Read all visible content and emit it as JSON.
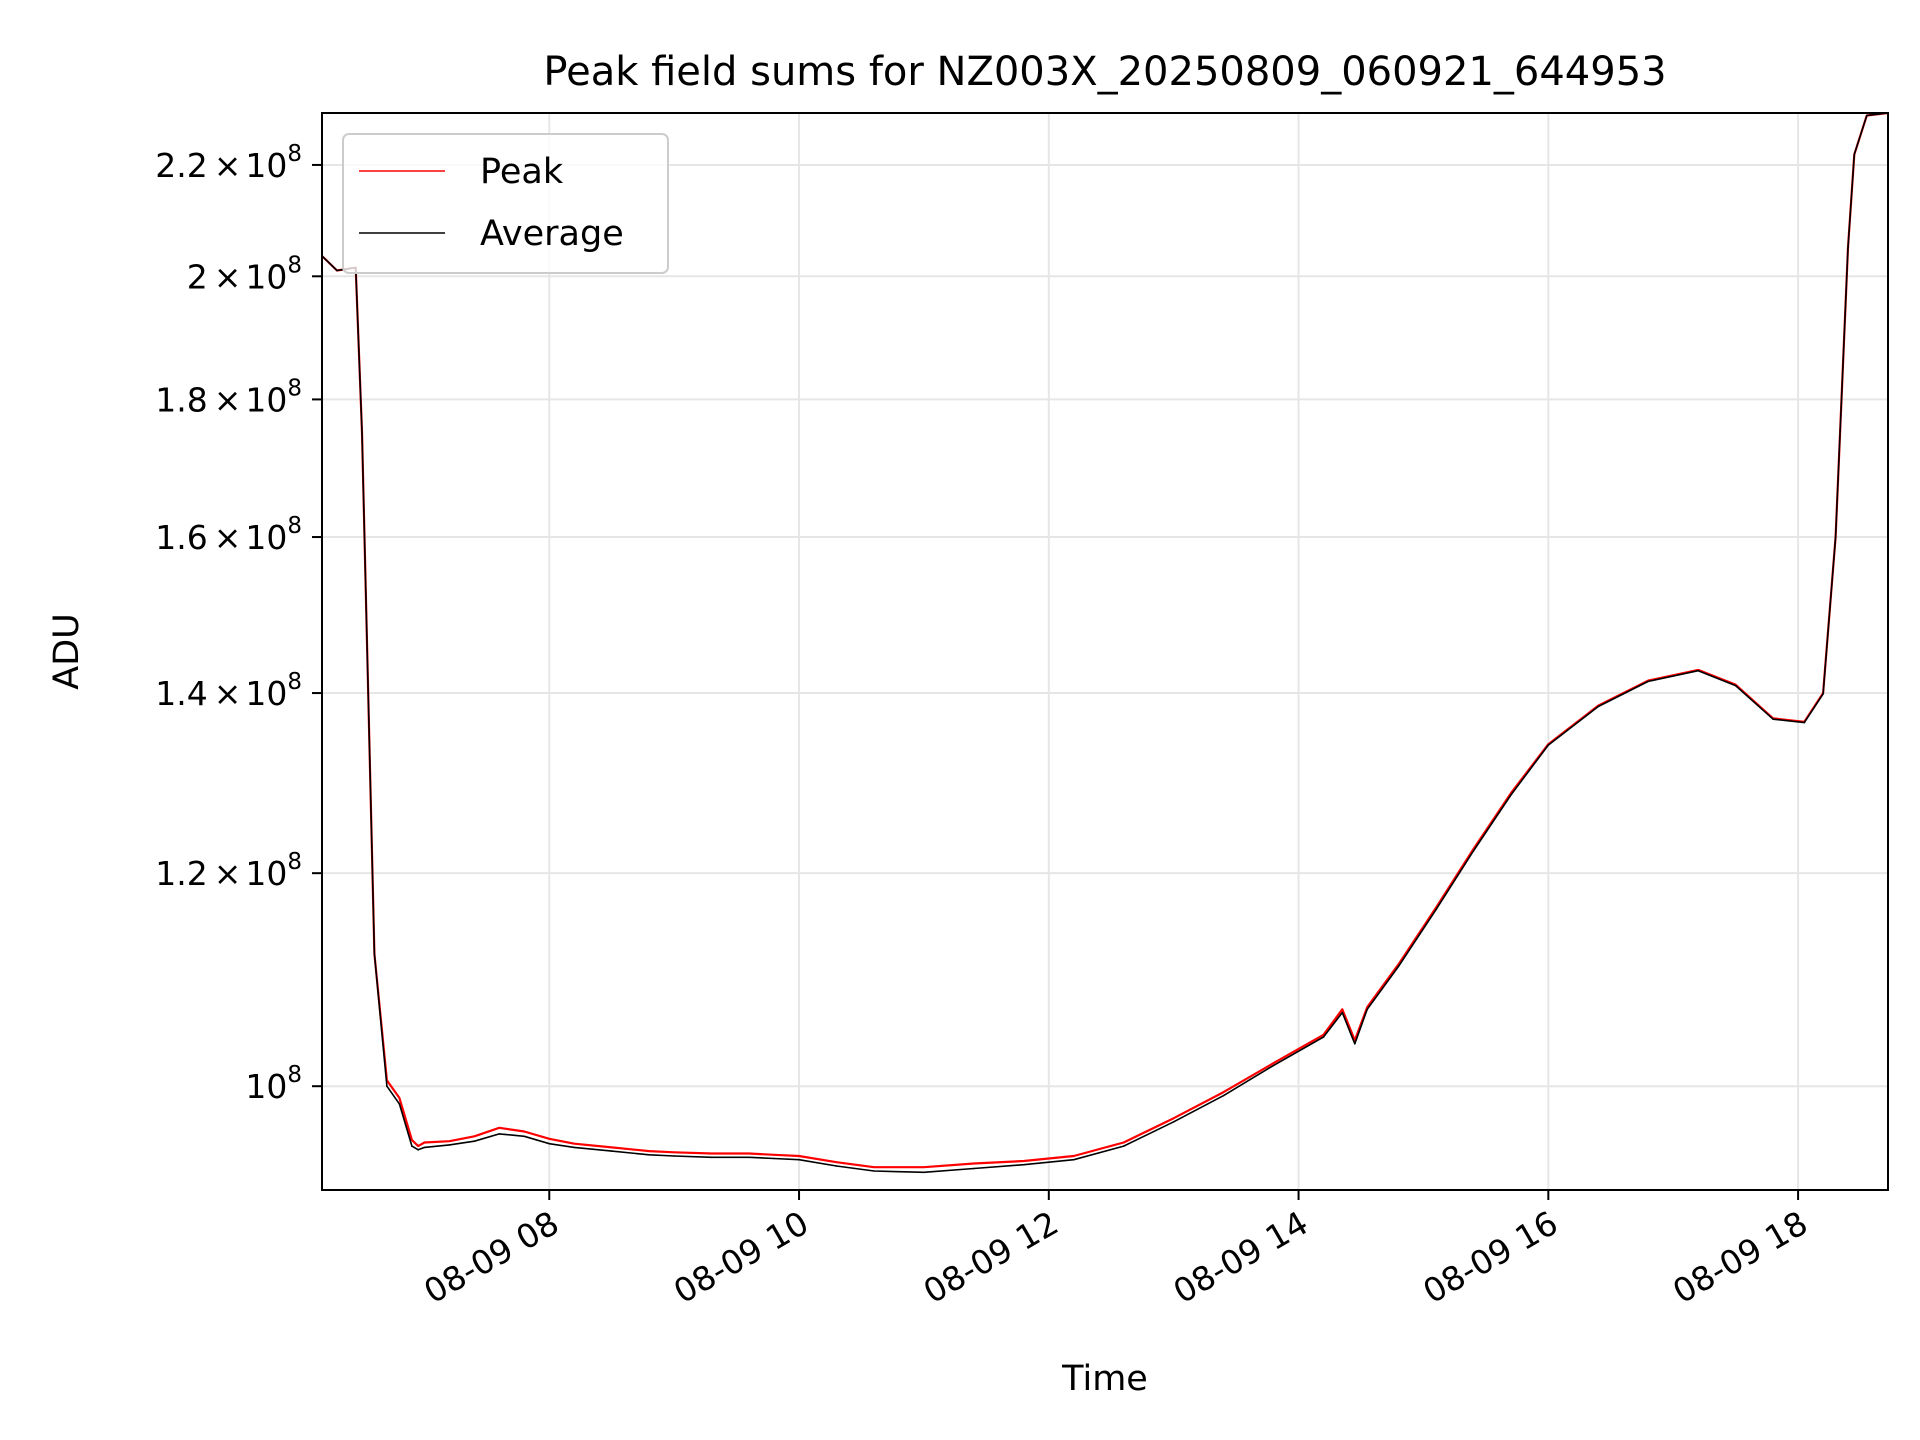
{
  "chart_data": {
    "type": "line",
    "title": "Peak field sums for NZ003X_20250809_060921_644953",
    "xlabel": "Time",
    "ylabel": "ADU",
    "x_range_hours": [
      6.18,
      18.72
    ],
    "xticks": [
      {
        "hour": 8,
        "label": "08-09 08"
      },
      {
        "hour": 10,
        "label": "08-09 10"
      },
      {
        "hour": 12,
        "label": "08-09 12"
      },
      {
        "hour": 14,
        "label": "08-09 14"
      },
      {
        "hour": 16,
        "label": "08-09 16"
      },
      {
        "hour": 18,
        "label": "08-09 18"
      }
    ],
    "y_scale": "log",
    "ylim": [
      91500000,
      230000000
    ],
    "yticks": [
      {
        "value": 100000000,
        "mantissa": "",
        "exponent": "8",
        "base": "10"
      },
      {
        "value": 120000000,
        "mantissa": "1.2",
        "exponent": "8",
        "base": "10"
      },
      {
        "value": 140000000,
        "mantissa": "1.4",
        "exponent": "8",
        "base": "10"
      },
      {
        "value": 160000000,
        "mantissa": "1.6",
        "exponent": "8",
        "base": "10"
      },
      {
        "value": 180000000,
        "mantissa": "1.8",
        "exponent": "8",
        "base": "10"
      },
      {
        "value": 200000000,
        "mantissa": "2",
        "exponent": "8",
        "base": "10"
      },
      {
        "value": 220000000,
        "mantissa": "2.2",
        "exponent": "8",
        "base": "10"
      }
    ],
    "grid": true,
    "legend_position": "top-left",
    "series": [
      {
        "name": "Peak",
        "color": "#ff0000",
        "x": [
          6.18,
          6.3,
          6.45,
          6.5,
          6.55,
          6.6,
          6.7,
          6.8,
          6.9,
          6.95,
          7.0,
          7.2,
          7.4,
          7.6,
          7.8,
          8.0,
          8.2,
          8.5,
          8.8,
          9.0,
          9.3,
          9.6,
          9.8,
          10.0,
          10.3,
          10.6,
          11.0,
          11.4,
          11.8,
          12.2,
          12.6,
          13.0,
          13.4,
          13.8,
          14.2,
          14.35,
          14.45,
          14.55,
          14.8,
          15.1,
          15.4,
          15.7,
          16.0,
          16.4,
          16.8,
          17.2,
          17.5,
          17.8,
          18.05,
          18.2,
          18.3,
          18.4,
          18.45,
          18.55,
          18.72
        ],
        "y": [
          203500000,
          201000000,
          201500000,
          175000000,
          140000000,
          112000000,
          100500000,
          99000000,
          95500000,
          95000000,
          95300000,
          95400000,
          95800000,
          96500000,
          96200000,
          95600000,
          95200000,
          94900000,
          94600000,
          94500000,
          94400000,
          94400000,
          94300000,
          94200000,
          93700000,
          93300000,
          93300000,
          93600000,
          93800000,
          94200000,
          95300000,
          97300000,
          99500000,
          102000000,
          104500000,
          106800000,
          104000000,
          107000000,
          111000000,
          116500000,
          122500000,
          128500000,
          134000000,
          138500000,
          141500000,
          142800000,
          141000000,
          137000000,
          136600000,
          140000000,
          160000000,
          205000000,
          222000000,
          229500000,
          230000000
        ]
      },
      {
        "name": "Average",
        "color": "#000000",
        "x": [
          6.18,
          6.3,
          6.45,
          6.5,
          6.55,
          6.6,
          6.7,
          6.8,
          6.9,
          6.95,
          7.0,
          7.2,
          7.4,
          7.6,
          7.8,
          8.0,
          8.2,
          8.5,
          8.8,
          9.0,
          9.3,
          9.6,
          9.8,
          10.0,
          10.3,
          10.6,
          11.0,
          11.4,
          11.8,
          12.2,
          12.6,
          13.0,
          13.4,
          13.8,
          14.2,
          14.35,
          14.45,
          14.55,
          14.8,
          15.1,
          15.4,
          15.7,
          16.0,
          16.4,
          16.8,
          17.2,
          17.5,
          17.8,
          18.05,
          18.2,
          18.3,
          18.4,
          18.45,
          18.55,
          18.72
        ],
        "y": [
          203500000,
          201000000,
          201500000,
          175000000,
          140000000,
          112000000,
          100000000,
          98500000,
          95000000,
          94700000,
          94900000,
          95100000,
          95400000,
          96000000,
          95800000,
          95200000,
          94900000,
          94600000,
          94300000,
          94200000,
          94100000,
          94100000,
          94000000,
          93900000,
          93400000,
          93000000,
          92900000,
          93200000,
          93500000,
          93900000,
          95000000,
          97000000,
          99200000,
          101800000,
          104300000,
          106500000,
          103700000,
          106800000,
          110800000,
          116300000,
          122300000,
          128300000,
          133900000,
          138400000,
          141400000,
          142700000,
          140900000,
          136900000,
          136500000,
          139900000,
          160000000,
          205000000,
          222000000,
          229500000,
          230000000
        ]
      }
    ]
  }
}
